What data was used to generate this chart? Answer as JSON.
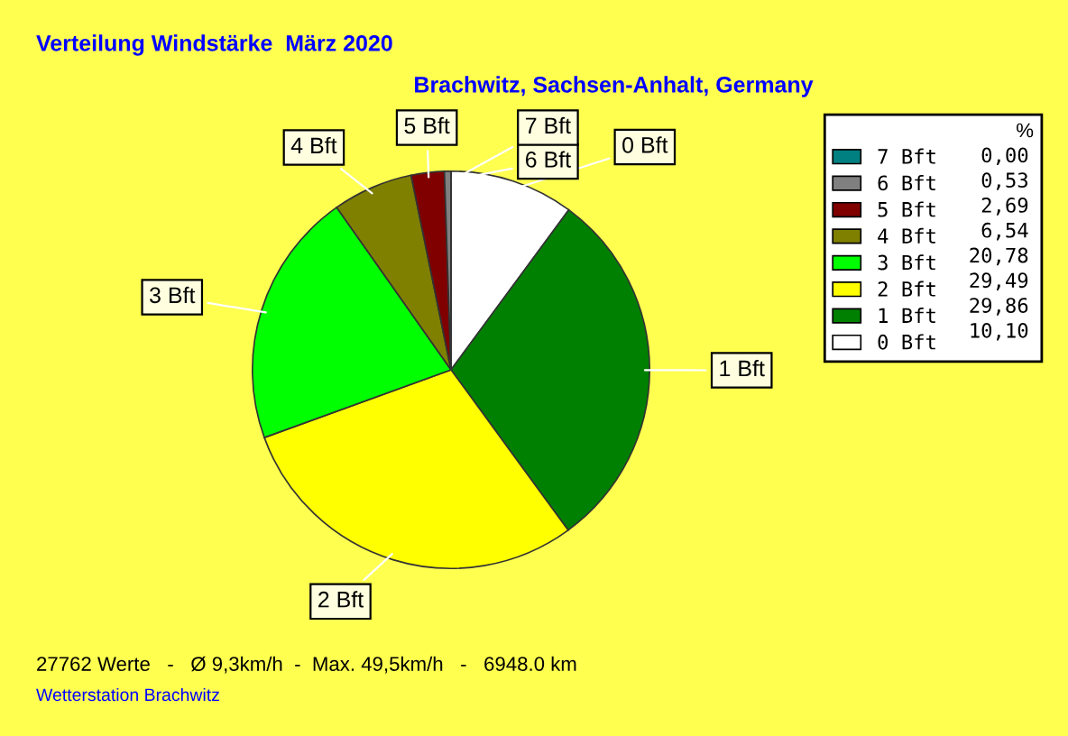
{
  "chart_data": {
    "type": "pie",
    "title": "Verteilung Windstärke  März 2020",
    "subtitle": "Brachwitz, Sachsen-Anhalt, Germany",
    "categories": [
      "0 Bft",
      "1 Bft",
      "2 Bft",
      "3 Bft",
      "4 Bft",
      "5 Bft",
      "6 Bft",
      "7 Bft"
    ],
    "values": [
      10.1,
      29.86,
      29.49,
      20.78,
      6.54,
      2.69,
      0.53,
      0.0
    ],
    "colors": [
      "#ffffff",
      "#008000",
      "#ffff00",
      "#00ff00",
      "#808000",
      "#800000",
      "#808080",
      "#008080"
    ],
    "value_labels": [
      "10,10",
      "29,86",
      "29,49",
      "20,78",
      "6,54",
      "2,69",
      "0,53",
      "0,00"
    ],
    "legend_title": "%",
    "legend": "right",
    "annotations": [
      "27762 Werte   -   Ø 9,3km/h  -  Max. 49,5km/h   -   6948.0 km",
      "Wetterstation Brachwitz"
    ]
  }
}
